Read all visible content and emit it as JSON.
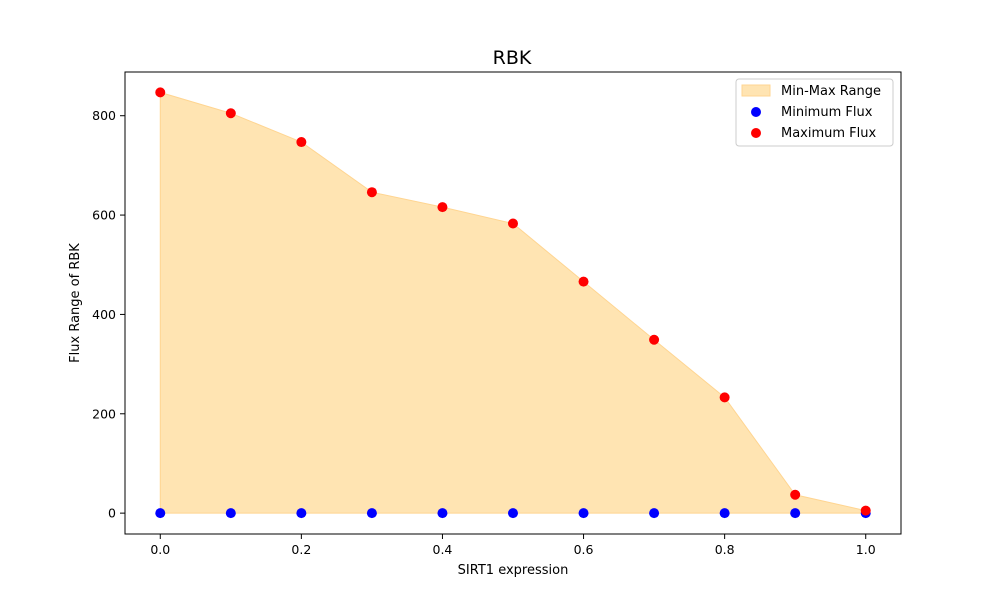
{
  "chart_data": {
    "type": "scatter",
    "title": "RBK",
    "xlabel": "SIRT1 expression",
    "ylabel": "Flux Range of RBK",
    "x": [
      0.0,
      0.1,
      0.2,
      0.3,
      0.4,
      0.5,
      0.6,
      0.7,
      0.8,
      0.9,
      1.0
    ],
    "xlim": [
      -0.05,
      1.05
    ],
    "ylim": [
      -42,
      888
    ],
    "xticks": [
      0.0,
      0.2,
      0.4,
      0.6,
      0.8,
      1.0
    ],
    "xtick_labels": [
      "0.0",
      "0.2",
      "0.4",
      "0.6",
      "0.8",
      "1.0"
    ],
    "yticks": [
      0,
      200,
      400,
      600,
      800
    ],
    "ytick_labels": [
      "0",
      "200",
      "400",
      "600",
      "800"
    ],
    "grid": false,
    "legend_position": "top-right",
    "fill_range": {
      "name": "Min-Max Range",
      "color": "#ffe4b2",
      "edge_color": "#ffd591"
    },
    "series": [
      {
        "name": "Minimum Flux",
        "color": "#0000ff",
        "values": [
          0,
          0,
          0,
          0,
          0,
          0,
          0,
          0,
          0,
          0,
          0
        ]
      },
      {
        "name": "Maximum Flux",
        "color": "#ff0000",
        "values": [
          847,
          805,
          747,
          646,
          616,
          583,
          466,
          349,
          233,
          37,
          5
        ]
      }
    ]
  }
}
